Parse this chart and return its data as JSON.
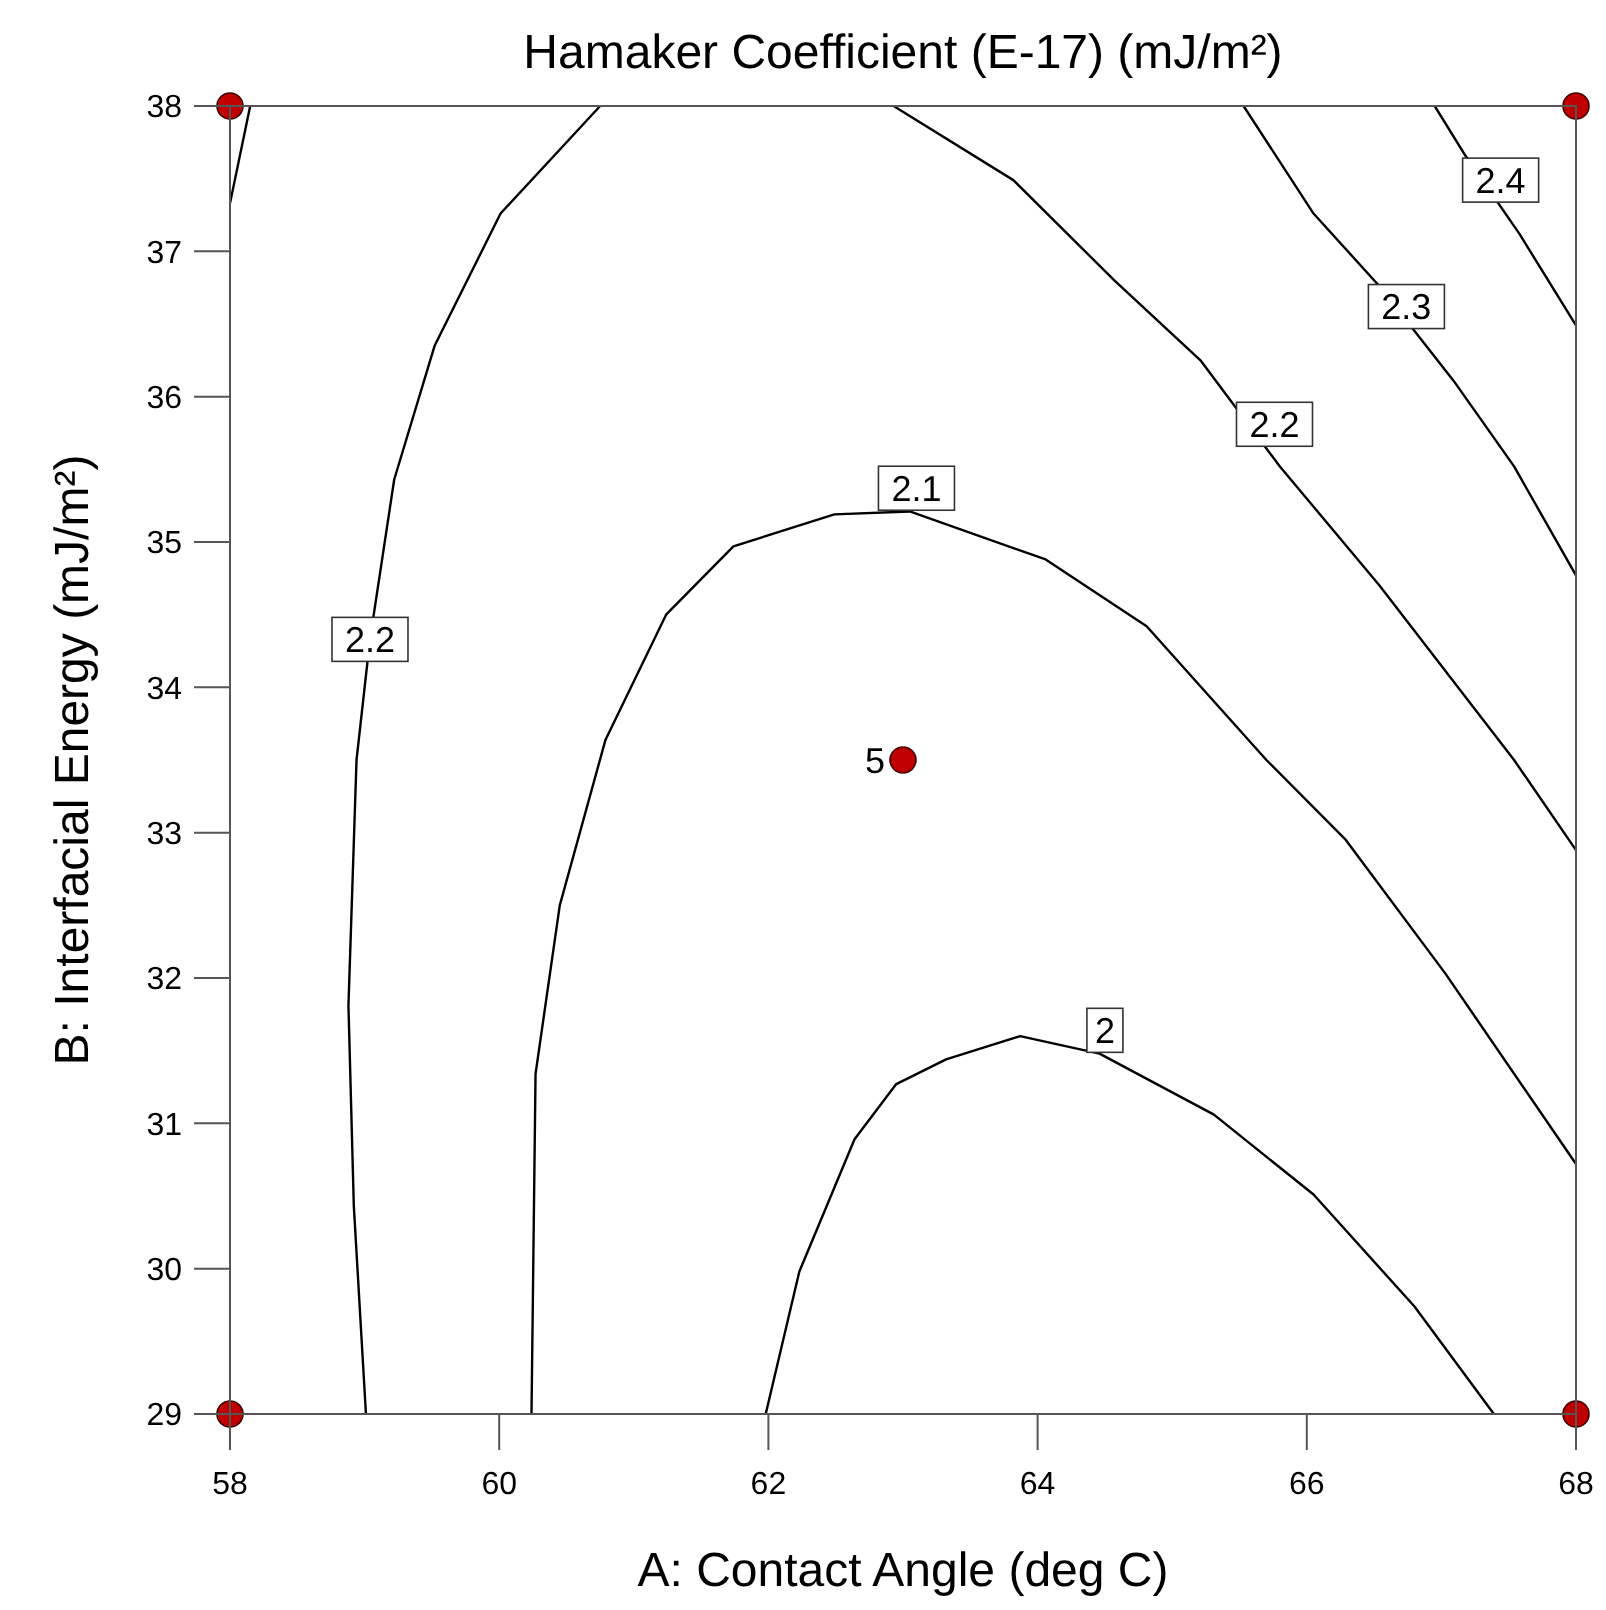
{
  "chart_data": {
    "type": "line",
    "title": "Hamaker Coefficient (E-17) (mJ/m²)",
    "xlabel": "A: Contact Angle (deg C)",
    "ylabel": "B: Interfacial Energy (mJ/m²)",
    "xlim": [
      58,
      68
    ],
    "ylim": [
      29,
      38
    ],
    "xticks": [
      58,
      60,
      62,
      64,
      66,
      68
    ],
    "yticks": [
      29,
      30,
      31,
      32,
      33,
      34,
      35,
      36,
      37,
      38
    ],
    "grid": false,
    "line_style": "solid",
    "series": [
      {
        "color": "#000000",
        "x": [
          60.75,
          60.01,
          59.52,
          59.22,
          59.04,
          58.94,
          58.88,
          58.92,
          59.01
        ],
        "values": [
          38,
          37.26,
          36.35,
          35.43,
          34.33,
          33.5,
          31.81,
          30.43,
          29
        ]
      },
      {
        "color": "#000000",
        "x": [
          58.15,
          58
        ],
        "values": [
          38,
          37.33
        ]
      },
      {
        "color": "#000000",
        "x": [
          62.93,
          63.82,
          64.57,
          65.21,
          65.8,
          66.54,
          67.54,
          68
        ],
        "values": [
          38,
          37.49,
          36.8,
          36.25,
          35.52,
          34.7,
          33.5,
          32.88
        ]
      },
      {
        "color": "#000000",
        "x": [
          60.24,
          60.27,
          60.45,
          60.79,
          61.24,
          61.74,
          62.49,
          63.05,
          64.06,
          64.81,
          65.7,
          66.29,
          67.03,
          68
        ],
        "values": [
          29,
          31.34,
          32.5,
          33.64,
          34.5,
          34.97,
          35.19,
          35.21,
          34.88,
          34.42,
          33.5,
          32.95,
          32.03,
          30.72
        ]
      },
      {
        "color": "#000000",
        "x": [
          61.98,
          62.23,
          62.64,
          62.95,
          63.32,
          63.87,
          64.46,
          65.31,
          66.05,
          66.8,
          67.39
        ],
        "values": [
          29,
          29.98,
          30.89,
          31.27,
          31.44,
          31.6,
          31.48,
          31.06,
          30.51,
          29.74,
          29
        ]
      },
      {
        "color": "#000000",
        "x": [
          65.53,
          66.05,
          66.54,
          67.09,
          67.54,
          68
        ],
        "values": [
          38,
          37.26,
          36.76,
          36.11,
          35.52,
          34.77
        ]
      },
      {
        "color": "#000000",
        "x": [
          66.95,
          67.17,
          67.58,
          68
        ],
        "values": [
          38,
          37.67,
          37.12,
          36.49
        ]
      },
      {
        "type": "scatter",
        "color": "#c00000",
        "marker": "circle",
        "x": [
          58,
          58,
          68,
          68,
          63
        ],
        "values": [
          29,
          38,
          29,
          38,
          33.5
        ]
      }
    ],
    "annotations": [
      {
        "text": "2.2",
        "x": 59.04,
        "y": 34.33
      },
      {
        "text": "2.2",
        "x": 65.76,
        "y": 35.81
      },
      {
        "text": "2.1",
        "x": 63.1,
        "y": 35.37
      },
      {
        "text": "2",
        "x": 64.5,
        "y": 31.64
      },
      {
        "text": "2.3",
        "x": 66.74,
        "y": 36.62
      },
      {
        "text": "2.4",
        "x": 67.44,
        "y": 37.49
      },
      {
        "text": "5",
        "x": 63,
        "y": 33.5
      }
    ]
  }
}
